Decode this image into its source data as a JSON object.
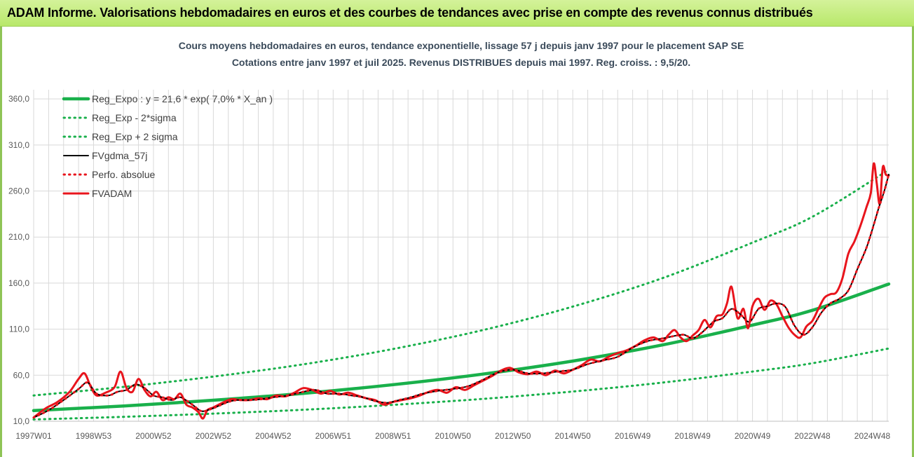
{
  "banner": {
    "title": "ADAM Informe. Valorisations hebdomadaires en euros et des courbes de tendances avec prise en compte des revenus connus distribués"
  },
  "colors": {
    "banner": "#c6ee85",
    "trend": "#19b04b",
    "fv": "#e8141c",
    "gdma": "#000000",
    "grid": "#d9d9d9"
  },
  "chart_data": {
    "type": "line",
    "title": "Cours moyens hebdomadaires en euros, tendance exponentielle, lissage 57 j depuis janv 1997  pour le placement SAP SE",
    "subtitle": "Cotations entre janv 1997 et juil 2025. Revenus DISTRIBUES depuis mai 1997. Reg. croiss. : 9,5/20.",
    "xlabel": "",
    "ylabel": "",
    "ylim": [
      10,
      370
    ],
    "xlim": [
      1997.0,
      2025.55
    ],
    "grid": true,
    "legend_position": "top-left",
    "y_ticks": [
      "10,0",
      "60,0",
      "110,0",
      "160,0",
      "210,0",
      "260,0",
      "310,0",
      "360,0"
    ],
    "y_tick_values": [
      10,
      60,
      110,
      160,
      210,
      260,
      310,
      360
    ],
    "x_ticks": [
      "1997W01",
      "1998W53",
      "2000W52",
      "2002W52",
      "2004W52",
      "2006W51",
      "2008W51",
      "2010W50",
      "2012W50",
      "2014W50",
      "2016W49",
      "2018W49",
      "2020W49",
      "2022W48",
      "2024W48"
    ],
    "x_tick_values": [
      1997.0,
      1999.0,
      2001.0,
      2003.0,
      2005.0,
      2007.0,
      2009.0,
      2011.0,
      2013.0,
      2015.0,
      2017.0,
      2019.0,
      2021.0,
      2023.0,
      2025.0
    ],
    "series": [
      {
        "name": "Reg_Expo : y = 21,6 * exp( 7,0% *  X_an )",
        "style": "solid-thick",
        "color": "#19b04b",
        "x": [
          1997.0,
          2000.0,
          2003.0,
          2006.0,
          2009.0,
          2012.0,
          2015.0,
          2018.0,
          2021.0,
          2023.0,
          2025.55
        ],
        "y": [
          21.6,
          26.6,
          32.8,
          40.3,
          49.7,
          61.2,
          75.4,
          92.9,
          114.4,
          130.5,
          159.0
        ]
      },
      {
        "name": "Reg_Exp - 2*sigma",
        "style": "dotted",
        "color": "#19b04b",
        "x": [
          1997.0,
          2000.0,
          2003.0,
          2006.0,
          2009.0,
          2012.0,
          2015.0,
          2018.0,
          2021.0,
          2023.0,
          2025.55
        ],
        "y": [
          12.0,
          14.8,
          18.3,
          22.5,
          27.8,
          34.3,
          42.3,
          52.0,
          64.0,
          73.0,
          89.0
        ]
      },
      {
        "name": "Reg_Exp + 2 sigma",
        "style": "dotted",
        "color": "#19b04b",
        "x": [
          1997.0,
          2000.0,
          2003.0,
          2006.0,
          2009.0,
          2012.0,
          2015.0,
          2018.0,
          2021.0,
          2023.0,
          2025.55
        ],
        "y": [
          38.0,
          47.3,
          58.5,
          71.8,
          88.5,
          109.0,
          134.5,
          165.5,
          204.0,
          232.0,
          283.0
        ]
      },
      {
        "name": "FVgdma_57j",
        "style": "solid",
        "color": "#000000",
        "x": [
          1997.0,
          1997.5,
          1998.0,
          1998.5,
          1998.8,
          1999.1,
          1999.5,
          1999.8,
          2000.1,
          2000.4,
          2000.7,
          2001.0,
          2001.3,
          2001.6,
          2001.9,
          2002.3,
          2002.6,
          2002.9,
          2003.2,
          2003.5,
          2003.8,
          2004.2,
          2004.6,
          2005.0,
          2005.5,
          2006.0,
          2006.4,
          2006.8,
          2007.2,
          2007.6,
          2008.0,
          2008.4,
          2008.8,
          2009.2,
          2009.6,
          2010.0,
          2010.5,
          2011.0,
          2011.5,
          2012.0,
          2012.5,
          2013.0,
          2013.5,
          2014.0,
          2014.5,
          2015.0,
          2015.5,
          2016.0,
          2016.5,
          2017.0,
          2017.5,
          2018.0,
          2018.3,
          2018.7,
          2019.0,
          2019.3,
          2019.7,
          2020.0,
          2020.3,
          2020.6,
          2020.9,
          2021.2,
          2021.5,
          2021.8,
          2022.1,
          2022.4,
          2022.7,
          2023.0,
          2023.3,
          2023.6,
          2023.9,
          2024.2,
          2024.5,
          2024.8,
          2025.0,
          2025.2,
          2025.4,
          2025.55
        ],
        "y": [
          14,
          22,
          33,
          45,
          52,
          40,
          38,
          42,
          44,
          50,
          46,
          38,
          36,
          33,
          36,
          28,
          21,
          23,
          27,
          31,
          33,
          33,
          34,
          36,
          38,
          42,
          44,
          40,
          40,
          38,
          36,
          32,
          30,
          33,
          36,
          40,
          43,
          45,
          48,
          55,
          63,
          66,
          62,
          62,
          64,
          66,
          72,
          76,
          80,
          90,
          97,
          100,
          102,
          104,
          100,
          106,
          118,
          122,
          132,
          126,
          118,
          132,
          135,
          138,
          134,
          114,
          104,
          112,
          128,
          138,
          143,
          152,
          175,
          198,
          218,
          240,
          260,
          278
        ]
      },
      {
        "name": "Perfo. absolue",
        "style": "dotted",
        "color": "#e8141c",
        "x": [
          1997.0,
          1997.5,
          1998.0,
          1998.5,
          1998.8,
          1999.1,
          1999.5,
          1999.8,
          2000.1,
          2000.4,
          2000.7,
          2001.0,
          2001.3,
          2001.6,
          2001.9,
          2002.3,
          2002.6,
          2002.9,
          2003.2,
          2003.5,
          2003.8,
          2004.2,
          2004.6,
          2005.0,
          2005.5,
          2006.0,
          2006.4,
          2006.8,
          2007.2,
          2007.6,
          2008.0,
          2008.4,
          2008.8,
          2009.2,
          2009.6,
          2010.0,
          2010.5,
          2011.0,
          2011.5,
          2012.0,
          2012.5,
          2013.0,
          2013.5,
          2014.0,
          2014.5,
          2015.0,
          2015.5,
          2016.0,
          2016.5,
          2017.0,
          2017.5,
          2018.0,
          2018.3,
          2018.7,
          2019.0,
          2019.3,
          2019.7,
          2020.0,
          2020.3,
          2020.6,
          2020.9,
          2021.2,
          2021.5,
          2021.8,
          2022.1,
          2022.4,
          2022.7,
          2023.0,
          2023.3,
          2023.6,
          2023.9,
          2024.2,
          2024.5,
          2024.8,
          2025.0,
          2025.2,
          2025.4,
          2025.55
        ],
        "y": [
          14,
          22,
          33,
          45,
          52,
          40,
          38,
          42,
          44,
          50,
          46,
          38,
          36,
          33,
          36,
          28,
          21,
          23,
          27,
          31,
          33,
          33,
          34,
          36,
          38,
          42,
          44,
          40,
          40,
          38,
          36,
          32,
          30,
          33,
          36,
          40,
          43,
          45,
          48,
          55,
          63,
          66,
          62,
          62,
          64,
          66,
          72,
          76,
          80,
          90,
          97,
          100,
          102,
          104,
          100,
          106,
          118,
          122,
          132,
          126,
          118,
          132,
          135,
          138,
          134,
          114,
          104,
          112,
          128,
          138,
          143,
          152,
          175,
          198,
          218,
          240,
          260,
          278
        ]
      },
      {
        "name": "FVADAM",
        "style": "solid-thick",
        "color": "#e8141c",
        "x": [
          1997.0,
          1997.4,
          1997.8,
          1998.2,
          1998.5,
          1998.7,
          1998.9,
          1999.1,
          1999.4,
          1999.7,
          1999.9,
          2000.1,
          2000.3,
          2000.5,
          2000.7,
          2000.9,
          2001.1,
          2001.3,
          2001.5,
          2001.7,
          2001.9,
          2002.1,
          2002.3,
          2002.5,
          2002.65,
          2002.8,
          2003.0,
          2003.3,
          2003.6,
          2003.9,
          2004.2,
          2004.5,
          2004.8,
          2005.1,
          2005.4,
          2005.7,
          2006.0,
          2006.3,
          2006.6,
          2006.9,
          2007.2,
          2007.5,
          2007.8,
          2008.1,
          2008.4,
          2008.7,
          2009.0,
          2009.3,
          2009.6,
          2009.9,
          2010.2,
          2010.5,
          2010.8,
          2011.1,
          2011.4,
          2011.7,
          2012.0,
          2012.3,
          2012.6,
          2012.9,
          2013.2,
          2013.5,
          2013.8,
          2014.1,
          2014.4,
          2014.7,
          2015.0,
          2015.3,
          2015.6,
          2015.9,
          2016.2,
          2016.5,
          2016.8,
          2017.1,
          2017.4,
          2017.7,
          2018.0,
          2018.2,
          2018.4,
          2018.6,
          2018.8,
          2019.0,
          2019.2,
          2019.4,
          2019.6,
          2019.8,
          2020.0,
          2020.15,
          2020.3,
          2020.5,
          2020.7,
          2020.85,
          2021.0,
          2021.2,
          2021.4,
          2021.6,
          2021.8,
          2022.0,
          2022.2,
          2022.4,
          2022.6,
          2022.8,
          2023.0,
          2023.2,
          2023.4,
          2023.6,
          2023.8,
          2024.0,
          2024.2,
          2024.4,
          2024.6,
          2024.8,
          2024.95,
          2025.05,
          2025.15,
          2025.25,
          2025.35,
          2025.45,
          2025.55
        ],
        "y": [
          14,
          24,
          31,
          42,
          56,
          62,
          48,
          38,
          41,
          47,
          64,
          46,
          42,
          56,
          44,
          37,
          42,
          33,
          36,
          34,
          40,
          28,
          25,
          20,
          13,
          22,
          25,
          30,
          34,
          33,
          33,
          35,
          34,
          38,
          37,
          41,
          46,
          44,
          40,
          43,
          39,
          41,
          38,
          35,
          33,
          28,
          31,
          33,
          35,
          38,
          42,
          44,
          41,
          47,
          44,
          49,
          54,
          59,
          65,
          68,
          63,
          61,
          64,
          60,
          65,
          62,
          66,
          71,
          77,
          75,
          80,
          84,
          87,
          92,
          98,
          101,
          97,
          104,
          109,
          101,
          97,
          103,
          109,
          120,
          112,
          124,
          126,
          138,
          156,
          122,
          132,
          111,
          135,
          143,
          131,
          141,
          137,
          124,
          112,
          104,
          101,
          113,
          119,
          132,
          144,
          148,
          150,
          165,
          192,
          205,
          222,
          242,
          258,
          290,
          268,
          246,
          286,
          278,
          277
        ]
      }
    ]
  }
}
